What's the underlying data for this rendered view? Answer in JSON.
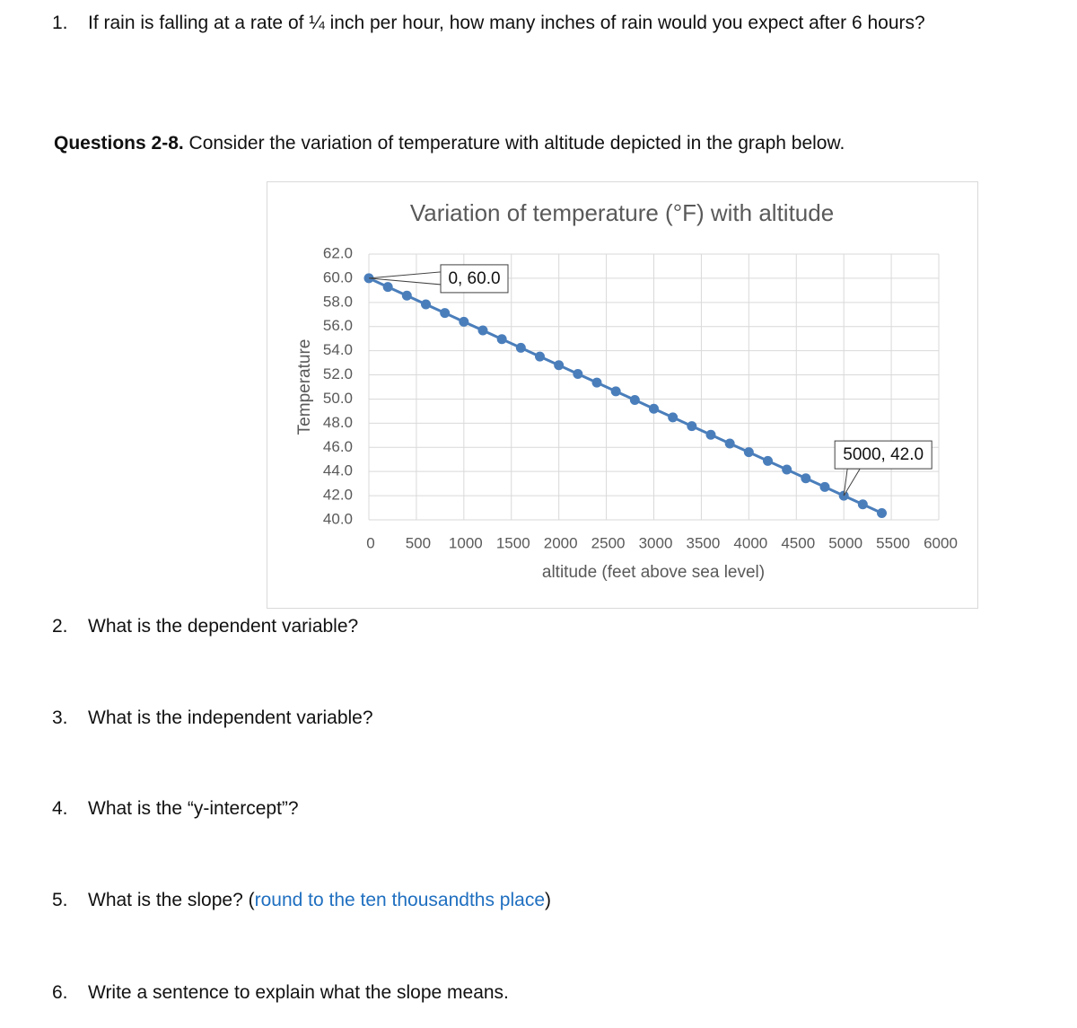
{
  "questions_top": [
    {
      "number": "1.",
      "text": "If rain is falling at a rate of ¼ inch per hour, how many inches of rain would you expect after 6 hours?"
    }
  ],
  "section": {
    "label": "Questions 2-8.",
    "text": " Consider the variation of temperature with altitude depicted in the graph below."
  },
  "chart_data": {
    "type": "line",
    "title": "Variation of temperature (°F) with altitude",
    "x_label": "altitude (feet above sea level)",
    "y_label": "Temperature",
    "x": [
      0,
      200,
      400,
      600,
      800,
      1000,
      1200,
      1400,
      1600,
      1800,
      2000,
      2200,
      2400,
      2600,
      2800,
      3000,
      3200,
      3400,
      3600,
      3800,
      4000,
      4200,
      4400,
      4600,
      4800,
      5000,
      5200,
      5400
    ],
    "values": [
      60,
      59.28,
      58.56,
      57.84,
      57.12,
      56.4,
      55.68,
      54.96,
      54.24,
      53.52,
      52.8,
      52.08,
      51.36,
      50.64,
      49.92,
      49.2,
      48.48,
      47.76,
      47.04,
      46.32,
      45.6,
      44.88,
      44.16,
      43.44,
      42.72,
      42,
      41.28,
      40.56
    ],
    "color": "#4a7ebb",
    "xlim": [
      0,
      6000
    ],
    "xticks": [
      0,
      500,
      1000,
      1500,
      2000,
      2500,
      3000,
      3500,
      4000,
      4500,
      5000,
      5500,
      6000
    ],
    "ylim": [
      40,
      62
    ],
    "yticks": [
      {
        "value": 40,
        "label": "40.0"
      },
      {
        "value": 42,
        "label": "42.0"
      },
      {
        "value": 44,
        "label": "44.0"
      },
      {
        "value": 46,
        "label": "46.0"
      },
      {
        "value": 48,
        "label": "48.0"
      },
      {
        "value": 50,
        "label": "50.0"
      },
      {
        "value": 52,
        "label": "52.0"
      },
      {
        "value": 54,
        "label": "54.0"
      },
      {
        "value": 56,
        "label": "56.0"
      },
      {
        "value": 58,
        "label": "58.0"
      },
      {
        "value": 60,
        "label": "60.0"
      },
      {
        "value": 62,
        "label": "62.0"
      }
    ],
    "grid": true,
    "data_labels": [
      {
        "text": "0, 60.0",
        "x": 0,
        "y": 60
      },
      {
        "text": "5000, 42.0",
        "x": 5000,
        "y": 42
      }
    ]
  },
  "questions": [
    {
      "number": "2.",
      "text": "What is the dependent variable?"
    },
    {
      "number": "3.",
      "text": "What is the independent variable?"
    },
    {
      "number": "4.",
      "text": "What is the “y-intercept”?"
    },
    {
      "number": "5.",
      "text": "What is the slope? (",
      "hint": "round to the ten thousandths place",
      "after": ")"
    },
    {
      "number": "6.",
      "text": "Write a sentence to explain what the slope means."
    }
  ]
}
